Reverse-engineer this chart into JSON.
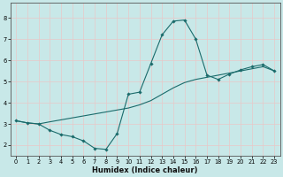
{
  "title": "",
  "xlabel": "Humidex (Indice chaleur)",
  "bg_color": "#c8e8e8",
  "grid_color": "#e8c8c8",
  "line_color": "#1a6b6b",
  "xlim": [
    -0.5,
    23.5
  ],
  "ylim": [
    1.5,
    8.7
  ],
  "xticks": [
    0,
    1,
    2,
    3,
    4,
    5,
    6,
    7,
    8,
    9,
    10,
    11,
    12,
    13,
    14,
    15,
    16,
    17,
    18,
    19,
    20,
    21,
    22,
    23
  ],
  "yticks": [
    2,
    3,
    4,
    5,
    6,
    7,
    8
  ],
  "line1_x": [
    0,
    1,
    2,
    3,
    4,
    5,
    6,
    7,
    8,
    9,
    10,
    11,
    12,
    13,
    14,
    15,
    16,
    17,
    18,
    19,
    20,
    21,
    22,
    23
  ],
  "line1_y": [
    3.15,
    3.05,
    3.0,
    2.7,
    2.5,
    2.4,
    2.2,
    1.85,
    1.8,
    2.55,
    4.4,
    4.5,
    5.85,
    7.2,
    7.85,
    7.9,
    7.0,
    5.3,
    5.1,
    5.35,
    5.55,
    5.7,
    5.8,
    5.5
  ],
  "line2_x": [
    0,
    1,
    2,
    3,
    10,
    11,
    12,
    13,
    14,
    15,
    16,
    17,
    18,
    19,
    20,
    21,
    22,
    23
  ],
  "line2_y": [
    3.15,
    3.05,
    3.0,
    3.1,
    3.75,
    3.9,
    4.1,
    4.4,
    4.7,
    4.95,
    5.1,
    5.2,
    5.3,
    5.4,
    5.5,
    5.6,
    5.7,
    5.5
  ],
  "xlabel_fontsize": 6.0,
  "tick_fontsize": 4.8,
  "linewidth": 0.8,
  "markersize": 1.8
}
